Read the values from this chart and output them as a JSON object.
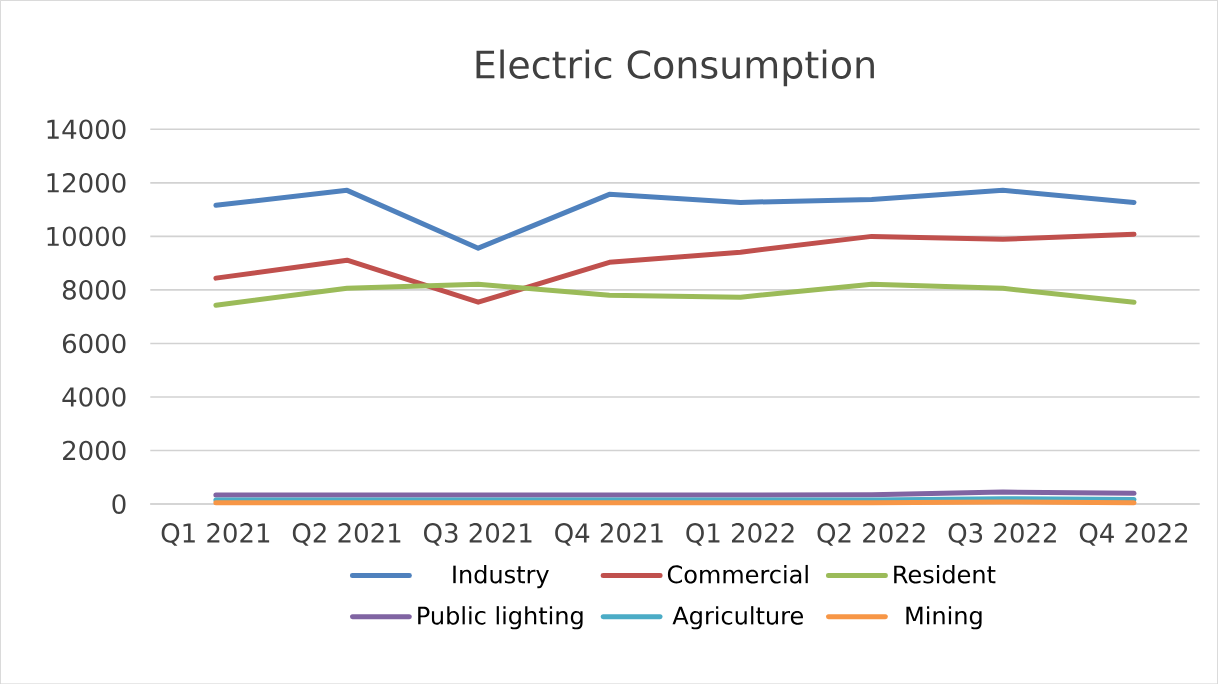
{
  "chart_data": {
    "type": "line",
    "title": "Electric Consumption",
    "categories": [
      "Q1 2021",
      "Q2 2021",
      "Q3 2021",
      "Q4 2021",
      "Q1 2022",
      "Q2 2022",
      "Q3 2022",
      "Q4 2022"
    ],
    "series": [
      {
        "name": "Industry",
        "color": "#4f81bd",
        "values": [
          11160,
          11720,
          9560,
          11570,
          11270,
          11380,
          11720,
          11270
        ]
      },
      {
        "name": "Commercial",
        "color": "#c0504d",
        "values": [
          8440,
          9110,
          7540,
          9030,
          9410,
          10000,
          9890,
          10080
        ]
      },
      {
        "name": "Resident",
        "color": "#9bbb59",
        "values": [
          7430,
          8060,
          8210,
          7800,
          7730,
          8210,
          8060,
          7540
        ]
      },
      {
        "name": "Public lighting",
        "color": "#8064a2",
        "values": [
          340,
          340,
          340,
          340,
          340,
          350,
          450,
          400
        ]
      },
      {
        "name": "Agriculture",
        "color": "#4bacc6",
        "values": [
          150,
          150,
          150,
          150,
          150,
          150,
          200,
          170
        ]
      },
      {
        "name": "Mining",
        "color": "#f79646",
        "values": [
          50,
          50,
          50,
          50,
          50,
          50,
          80,
          50
        ]
      }
    ],
    "ylim": [
      0,
      14000
    ],
    "yticks": [
      0,
      2000,
      4000,
      6000,
      8000,
      10000,
      12000,
      14000
    ],
    "grid": "y",
    "legend": "bottom",
    "marker": "none",
    "line_style": "solid"
  }
}
